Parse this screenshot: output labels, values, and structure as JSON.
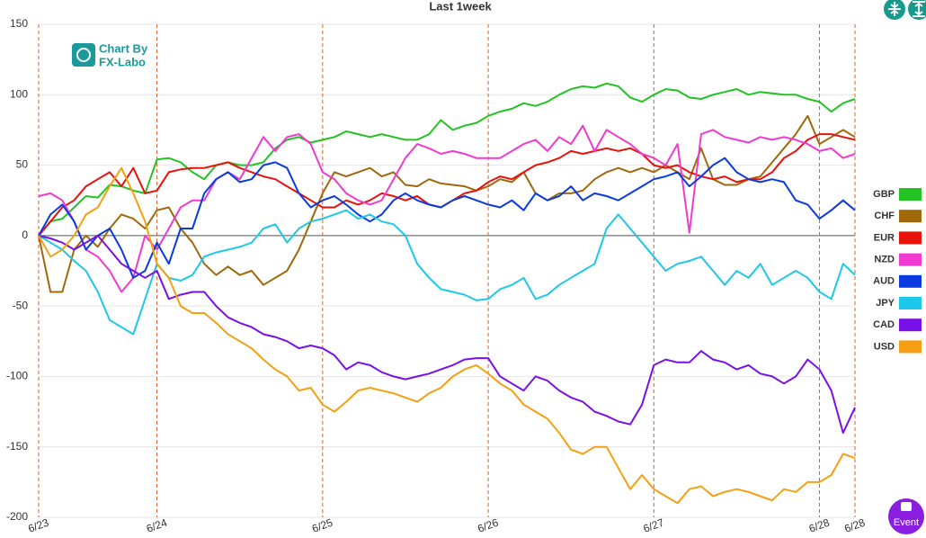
{
  "chart_data": {
    "type": "line",
    "title": "Last 1week",
    "categories": [
      "6/23",
      null,
      null,
      null,
      null,
      null,
      null,
      null,
      null,
      null,
      "6/24",
      null,
      null,
      null,
      null,
      null,
      null,
      null,
      null,
      null,
      null,
      null,
      null,
      null,
      "6/25",
      null,
      null,
      null,
      null,
      null,
      null,
      null,
      null,
      null,
      null,
      null,
      null,
      null,
      "6/26",
      null,
      null,
      null,
      null,
      null,
      null,
      null,
      null,
      null,
      null,
      null,
      null,
      null,
      "6/27",
      null,
      null,
      null,
      null,
      null,
      null,
      null,
      null,
      null,
      null,
      null,
      null,
      null,
      "6/28",
      null,
      null,
      "6/28"
    ],
    "series": [
      {
        "name": "GBP",
        "color": "#22c322",
        "values": [
          0,
          10,
          12,
          20,
          28,
          27,
          36,
          35,
          32,
          30,
          54,
          55,
          52,
          45,
          40,
          50,
          52,
          50,
          50,
          52,
          62,
          68,
          70,
          66,
          68,
          70,
          74,
          72,
          70,
          72,
          70,
          68,
          68,
          72,
          82,
          75,
          78,
          80,
          85,
          88,
          90,
          94,
          92,
          95,
          100,
          104,
          106,
          105,
          108,
          106,
          98,
          95,
          100,
          104,
          103,
          98,
          97,
          100,
          102,
          104,
          100,
          102,
          101,
          100,
          100,
          97,
          95,
          88,
          94,
          97
        ]
      },
      {
        "name": "CHF",
        "color": "#a0680a",
        "values": [
          0,
          -40,
          -40,
          -10,
          0,
          -8,
          5,
          15,
          12,
          5,
          18,
          20,
          5,
          -5,
          -20,
          -28,
          -22,
          -28,
          -25,
          -35,
          -30,
          -25,
          -10,
          10,
          30,
          45,
          42,
          45,
          48,
          42,
          45,
          36,
          35,
          40,
          37,
          36,
          35,
          32,
          35,
          40,
          38,
          45,
          30,
          25,
          30,
          30,
          32,
          40,
          45,
          48,
          45,
          48,
          45,
          50,
          45,
          40,
          62,
          40,
          36,
          36,
          40,
          42,
          52,
          62,
          72,
          85,
          65,
          70,
          75,
          70
        ]
      },
      {
        "name": "EUR",
        "color": "#e8120c",
        "values": [
          0,
          10,
          20,
          25,
          35,
          40,
          45,
          35,
          48,
          30,
          32,
          45,
          47,
          48,
          48,
          50,
          52,
          48,
          45,
          42,
          40,
          35,
          30,
          25,
          20,
          20,
          25,
          22,
          25,
          30,
          28,
          25,
          28,
          22,
          20,
          25,
          30,
          32,
          38,
          42,
          40,
          45,
          50,
          52,
          55,
          60,
          58,
          60,
          62,
          60,
          62,
          58,
          50,
          48,
          50,
          45,
          42,
          40,
          42,
          38,
          40,
          40,
          45,
          55,
          60,
          68,
          72,
          72,
          70,
          68
        ]
      },
      {
        "name": "NZD",
        "color": "#f03ad0",
        "values": [
          28,
          30,
          25,
          10,
          -10,
          -15,
          -25,
          -40,
          -30,
          0,
          -10,
          5,
          20,
          25,
          25,
          40,
          45,
          40,
          55,
          70,
          60,
          70,
          72,
          65,
          45,
          40,
          30,
          25,
          22,
          25,
          40,
          55,
          65,
          62,
          58,
          60,
          58,
          55,
          55,
          55,
          60,
          65,
          68,
          60,
          70,
          65,
          78,
          60,
          75,
          70,
          65,
          58,
          55,
          50,
          65,
          2,
          72,
          75,
          70,
          68,
          66,
          70,
          68,
          70,
          68,
          65,
          60,
          62,
          55,
          58
        ]
      },
      {
        "name": "AUD",
        "color": "#0a3be0",
        "values": [
          0,
          15,
          22,
          10,
          -10,
          0,
          5,
          -10,
          -30,
          -25,
          -5,
          -20,
          5,
          5,
          30,
          40,
          45,
          38,
          40,
          50,
          52,
          48,
          30,
          20,
          25,
          28,
          22,
          15,
          10,
          15,
          25,
          30,
          25,
          22,
          20,
          25,
          28,
          25,
          22,
          20,
          25,
          18,
          30,
          25,
          28,
          35,
          25,
          30,
          28,
          25,
          30,
          35,
          40,
          42,
          45,
          35,
          42,
          50,
          55,
          45,
          40,
          38,
          40,
          38,
          25,
          22,
          12,
          18,
          25,
          18
        ]
      },
      {
        "name": "JPY",
        "color": "#1ec8ea",
        "values": [
          0,
          -5,
          -10,
          -18,
          -25,
          -40,
          -60,
          -65,
          -70,
          -45,
          -20,
          -30,
          -32,
          -28,
          -15,
          -12,
          -10,
          -8,
          -5,
          5,
          8,
          -5,
          5,
          10,
          12,
          15,
          18,
          12,
          15,
          10,
          8,
          0,
          -20,
          -30,
          -38,
          -40,
          -42,
          -46,
          -45,
          -38,
          -35,
          -30,
          -45,
          -42,
          -35,
          -30,
          -25,
          -20,
          5,
          15,
          5,
          -5,
          -15,
          -25,
          -20,
          -18,
          -15,
          -25,
          -35,
          -25,
          -30,
          -20,
          -35,
          -30,
          -25,
          -30,
          -40,
          -45,
          -20,
          -28
        ]
      },
      {
        "name": "CAD",
        "color": "#7a10e8",
        "values": [
          0,
          -2,
          -5,
          -10,
          -5,
          0,
          -10,
          -20,
          -25,
          -30,
          -25,
          -45,
          -42,
          -40,
          -40,
          -50,
          -58,
          -62,
          -65,
          -70,
          -72,
          -75,
          -80,
          -78,
          -80,
          -85,
          -95,
          -90,
          -92,
          -97,
          -100,
          -102,
          -100,
          -98,
          -95,
          -92,
          -88,
          -87,
          -87,
          -100,
          -105,
          -110,
          -100,
          -103,
          -110,
          -115,
          -118,
          -125,
          -128,
          -132,
          -134,
          -120,
          -92,
          -88,
          -90,
          -90,
          -82,
          -88,
          -90,
          -95,
          -92,
          -98,
          -100,
          -105,
          -100,
          -88,
          -95,
          -110,
          -140,
          -122
        ]
      },
      {
        "name": "USD",
        "color": "#f5a012",
        "values": [
          0,
          -15,
          -10,
          0,
          15,
          20,
          35,
          48,
          30,
          10,
          -20,
          -30,
          -50,
          -55,
          -55,
          -62,
          -70,
          -75,
          -80,
          -88,
          -95,
          -100,
          -110,
          -108,
          -120,
          -125,
          -118,
          -110,
          -108,
          -110,
          -112,
          -115,
          -118,
          -112,
          -108,
          -100,
          -95,
          -92,
          -98,
          -105,
          -110,
          -120,
          -125,
          -130,
          -140,
          -152,
          -155,
          -150,
          -150,
          -165,
          -180,
          -170,
          -180,
          -185,
          -190,
          -180,
          -178,
          -185,
          -182,
          -180,
          -182,
          -185,
          -188,
          -180,
          -182,
          -175,
          -175,
          -170,
          -155,
          -158
        ]
      }
    ],
    "ylim": [
      -200,
      150
    ],
    "yticks": [
      -200,
      -150,
      -100,
      -50,
      0,
      50,
      100,
      150
    ],
    "grid": true,
    "legend": "right"
  },
  "logo": {
    "line1": "Chart By",
    "line2": "FX-Labo"
  },
  "event_button": "Event"
}
